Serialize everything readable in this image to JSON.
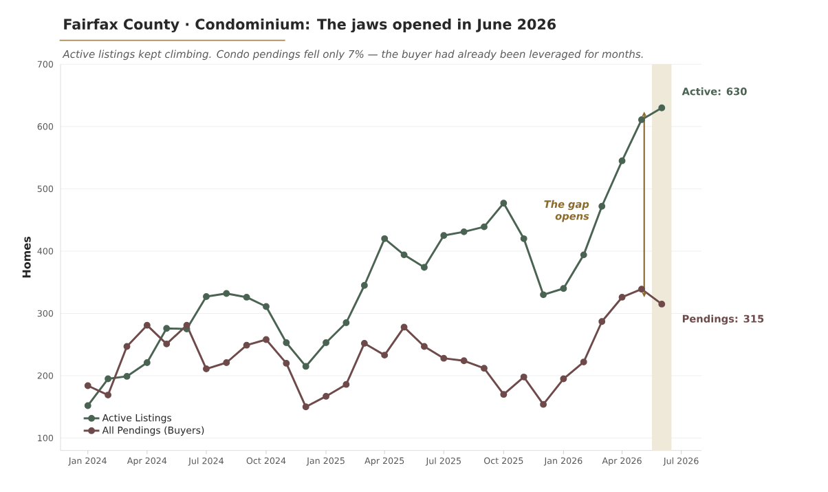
{
  "chart_data": {
    "type": "line",
    "title": "Fairfax County · Condominium: The jaws opened in June 2026",
    "subtitle": "Active listings kept climbing. Condo pendings fell only 7% — the buyer had already been leveraged for months.",
    "ylabel": "Homes",
    "x": [
      "2024-01",
      "2024-02",
      "2024-03",
      "2024-04",
      "2024-05",
      "2024-06",
      "2024-07",
      "2024-08",
      "2024-09",
      "2024-10",
      "2024-11",
      "2024-12",
      "2025-01",
      "2025-02",
      "2025-03",
      "2025-04",
      "2025-05",
      "2025-06",
      "2025-07",
      "2025-08",
      "2025-09",
      "2025-10",
      "2025-11",
      "2025-12",
      "2026-01",
      "2026-02",
      "2026-03",
      "2026-04",
      "2026-05",
      "2026-06"
    ],
    "series": [
      {
        "name": "Active Listings",
        "color": "#4a6352",
        "values": [
          152,
          195,
          199,
          221,
          276,
          275,
          327,
          332,
          326,
          311,
          253,
          215,
          253,
          285,
          345,
          420,
          394,
          374,
          425,
          431,
          439,
          477,
          420,
          330,
          340,
          394,
          472,
          545,
          611,
          630
        ]
      },
      {
        "name": "All Pendings (Buyers)",
        "color": "#6e4a4a",
        "values": [
          184,
          169,
          247,
          281,
          251,
          281,
          211,
          221,
          249,
          258,
          220,
          150,
          167,
          186,
          252,
          233,
          278,
          247,
          228,
          224,
          212,
          170,
          198,
          154,
          195,
          222,
          287,
          326,
          339,
          315
        ]
      }
    ],
    "xlim": [
      "2023-11-20",
      "2026-08-01"
    ],
    "xticks": [
      {
        "value": "2024-01",
        "label": "Jan 2024"
      },
      {
        "value": "2024-04",
        "label": "Apr 2024"
      },
      {
        "value": "2024-07",
        "label": "Jul 2024"
      },
      {
        "value": "2024-10",
        "label": "Oct 2024"
      },
      {
        "value": "2025-01",
        "label": "Jan 2025"
      },
      {
        "value": "2025-04",
        "label": "Apr 2025"
      },
      {
        "value": "2025-07",
        "label": "Jul 2025"
      },
      {
        "value": "2025-10",
        "label": "Oct 2025"
      },
      {
        "value": "2026-01",
        "label": "Jan 2026"
      },
      {
        "value": "2026-04",
        "label": "Apr 2026"
      },
      {
        "value": "2026-07",
        "label": "Jul 2026"
      }
    ],
    "ylim": [
      80,
      700
    ],
    "yticks": [
      100,
      200,
      300,
      400,
      500,
      600,
      700
    ],
    "grid": "y",
    "legend": "bottom left",
    "marker": "circle",
    "line_style": "solid",
    "bands": [
      {
        "axis": "x",
        "from": "2026-05-17",
        "to": "2026-06-16",
        "color": "#efe9da"
      }
    ],
    "annotations": [
      {
        "text": "Active: 630",
        "x": "2026-06",
        "y": 630
      },
      {
        "text": "Pendings: 315",
        "x": "2026-06",
        "y": 315
      },
      "The gap opens"
    ]
  }
}
